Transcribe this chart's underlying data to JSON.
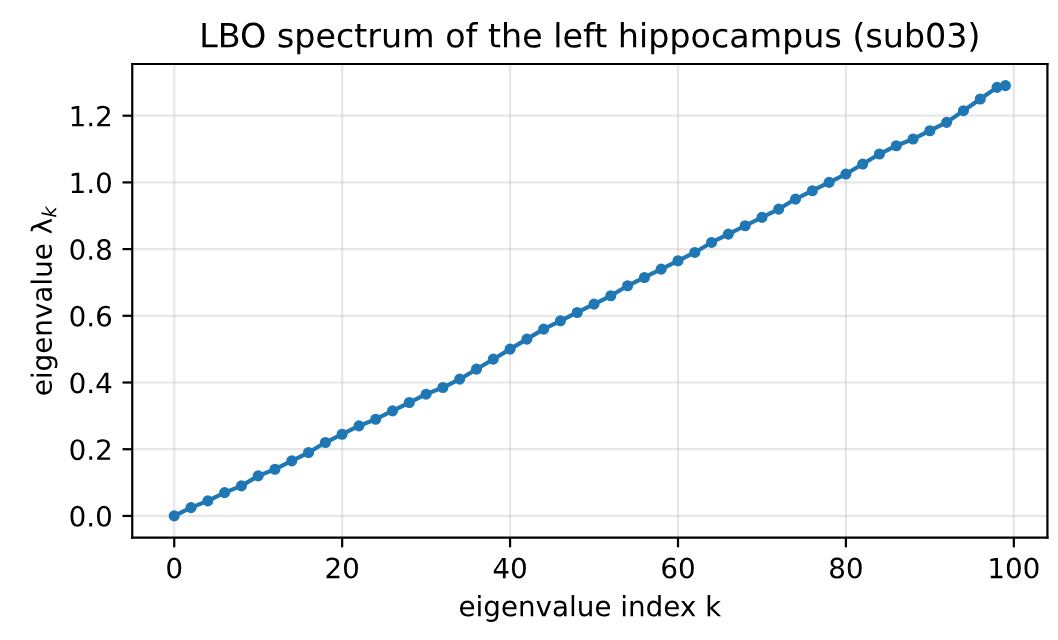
{
  "chart_data": {
    "type": "line",
    "title": "LBO spectrum of the left hippocampus (sub03)",
    "xlabel": "eigenvalue index k",
    "ylabel": "eigenvalue λ$_{k}$",
    "x": [
      0,
      2,
      4,
      6,
      8,
      10,
      12,
      14,
      16,
      18,
      20,
      22,
      24,
      26,
      28,
      30,
      32,
      34,
      36,
      38,
      40,
      42,
      44,
      46,
      48,
      50,
      52,
      54,
      56,
      58,
      60,
      62,
      64,
      66,
      68,
      70,
      72,
      74,
      76,
      78,
      80,
      82,
      84,
      86,
      88,
      90,
      92,
      94,
      96,
      98,
      99
    ],
    "series": [
      {
        "color": "#1f77b4",
        "values": [
          0,
          0.025,
          0.045,
          0.07,
          0.09,
          0.12,
          0.14,
          0.165,
          0.19,
          0.22,
          0.245,
          0.27,
          0.29,
          0.315,
          0.34,
          0.365,
          0.385,
          0.41,
          0.44,
          0.47,
          0.5,
          0.53,
          0.56,
          0.585,
          0.61,
          0.635,
          0.66,
          0.69,
          0.715,
          0.74,
          0.765,
          0.79,
          0.82,
          0.845,
          0.87,
          0.895,
          0.92,
          0.95,
          0.975,
          1.0,
          1.025,
          1.055,
          1.085,
          1.11,
          1.13,
          1.155,
          1.18,
          1.215,
          1.25,
          1.285,
          1.29
        ]
      }
    ],
    "xlim": [
      -5,
      104
    ],
    "ylim": [
      -0.065,
      1.355
    ],
    "xticks": [
      0,
      20,
      40,
      60,
      80,
      100
    ],
    "yticks": [
      {
        "value": 0,
        "label": "0.0"
      },
      {
        "value": 0.2,
        "label": "0.2"
      },
      {
        "value": 0.4,
        "label": "0.4"
      },
      {
        "value": 0.6,
        "label": "0.6"
      },
      {
        "value": 0.8,
        "label": "0.8"
      },
      {
        "value": 1.0,
        "label": "1.0"
      },
      {
        "value": 1.2,
        "label": "1.2"
      }
    ],
    "grid": true,
    "marker": "circle",
    "line_style": "solid",
    "legend": false
  }
}
